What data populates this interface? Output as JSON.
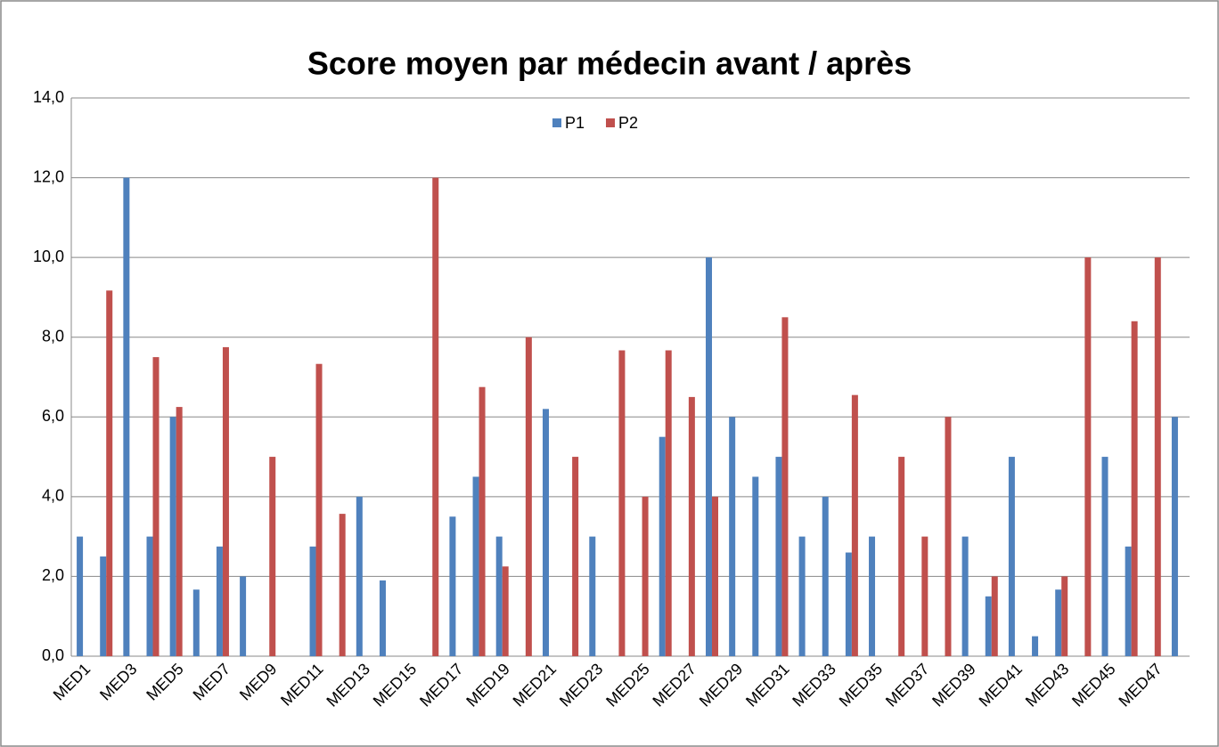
{
  "chart_data": {
    "type": "bar",
    "title": "Score moyen par médecin avant / après",
    "categories": [
      "MED1",
      null,
      "MED3",
      null,
      "MED5",
      null,
      "MED7",
      null,
      "MED9",
      null,
      "MED11",
      null,
      "MED13",
      null,
      "MED15",
      null,
      "MED17",
      null,
      "MED19",
      null,
      "MED21",
      null,
      "MED23",
      null,
      "MED25",
      null,
      "MED27",
      null,
      "MED29",
      null,
      "MED31",
      null,
      "MED33",
      null,
      "MED35",
      null,
      "MED37",
      null,
      "MED39",
      null,
      "MED41",
      null,
      "MED43",
      null,
      "MED45",
      null,
      "MED47",
      null
    ],
    "series": [
      {
        "name": "P1",
        "color": "#4f81bd",
        "values": [
          3,
          2.5,
          12,
          3,
          6,
          1.67,
          2.75,
          2,
          null,
          null,
          2.75,
          null,
          4,
          1.9,
          null,
          null,
          3.5,
          4.5,
          3,
          null,
          6.2,
          null,
          3,
          null,
          null,
          5.5,
          null,
          10,
          6,
          4.5,
          5,
          3,
          4,
          2.6,
          3,
          null,
          null,
          null,
          3,
          1.5,
          5,
          0.5,
          1.67,
          null,
          5,
          2.75,
          null,
          6
        ]
      },
      {
        "name": "P2",
        "color": "#c0504d",
        "values": [
          null,
          9.17,
          null,
          7.5,
          6.25,
          null,
          7.75,
          null,
          5,
          null,
          7.33,
          3.57,
          null,
          null,
          null,
          12,
          null,
          6.75,
          2.25,
          8,
          null,
          5,
          null,
          7.67,
          4,
          7.67,
          6.5,
          4,
          null,
          null,
          8.5,
          null,
          null,
          6.55,
          null,
          5,
          3,
          6,
          null,
          2,
          null,
          null,
          2,
          10,
          null,
          8.4,
          10,
          null
        ]
      }
    ],
    "ylim": [
      0,
      14
    ],
    "yticks": [
      {
        "value": 0,
        "label": "0,0"
      },
      {
        "value": 2,
        "label": "2,0"
      },
      {
        "value": 4,
        "label": "4,0"
      },
      {
        "value": 6,
        "label": "6,0"
      },
      {
        "value": 8,
        "label": "8,0"
      },
      {
        "value": 10,
        "label": "10,0"
      },
      {
        "value": 12,
        "label": "12,0"
      },
      {
        "value": 14,
        "label": "14,0"
      }
    ],
    "grid": true,
    "legend": "top"
  }
}
